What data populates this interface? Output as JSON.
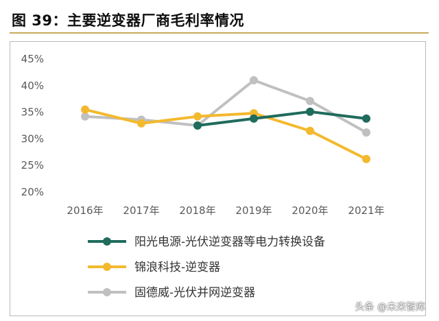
{
  "title": "图 39：主要逆变器厂商毛利率情况",
  "watermark": "头条 @未来智库",
  "chart_data": {
    "type": "line",
    "categories": [
      "2016年",
      "2017年",
      "2018年",
      "2019年",
      "2020年",
      "2021年"
    ],
    "ylim": [
      20,
      45
    ],
    "yticks": [
      20,
      25,
      30,
      35,
      40,
      45
    ],
    "ytick_labels": [
      "20%",
      "25%",
      "30%",
      "35%",
      "40%",
      "45%"
    ],
    "grid": false,
    "legend_position": "bottom",
    "series": [
      {
        "name": "阳光电源-光伏逆变器等电力转换设备",
        "color": "#1f6b5c",
        "values": [
          null,
          null,
          32.5,
          33.8,
          35.1,
          33.8
        ]
      },
      {
        "name": "锦浪科技-逆变器",
        "color": "#f3b92e",
        "values": [
          35.5,
          32.9,
          34.2,
          34.8,
          31.5,
          26.2
        ]
      },
      {
        "name": "固德威-光伏并网逆变器",
        "color": "#c0c0c0",
        "values": [
          34.2,
          33.6,
          32.5,
          41.0,
          37.1,
          31.2
        ]
      }
    ]
  }
}
